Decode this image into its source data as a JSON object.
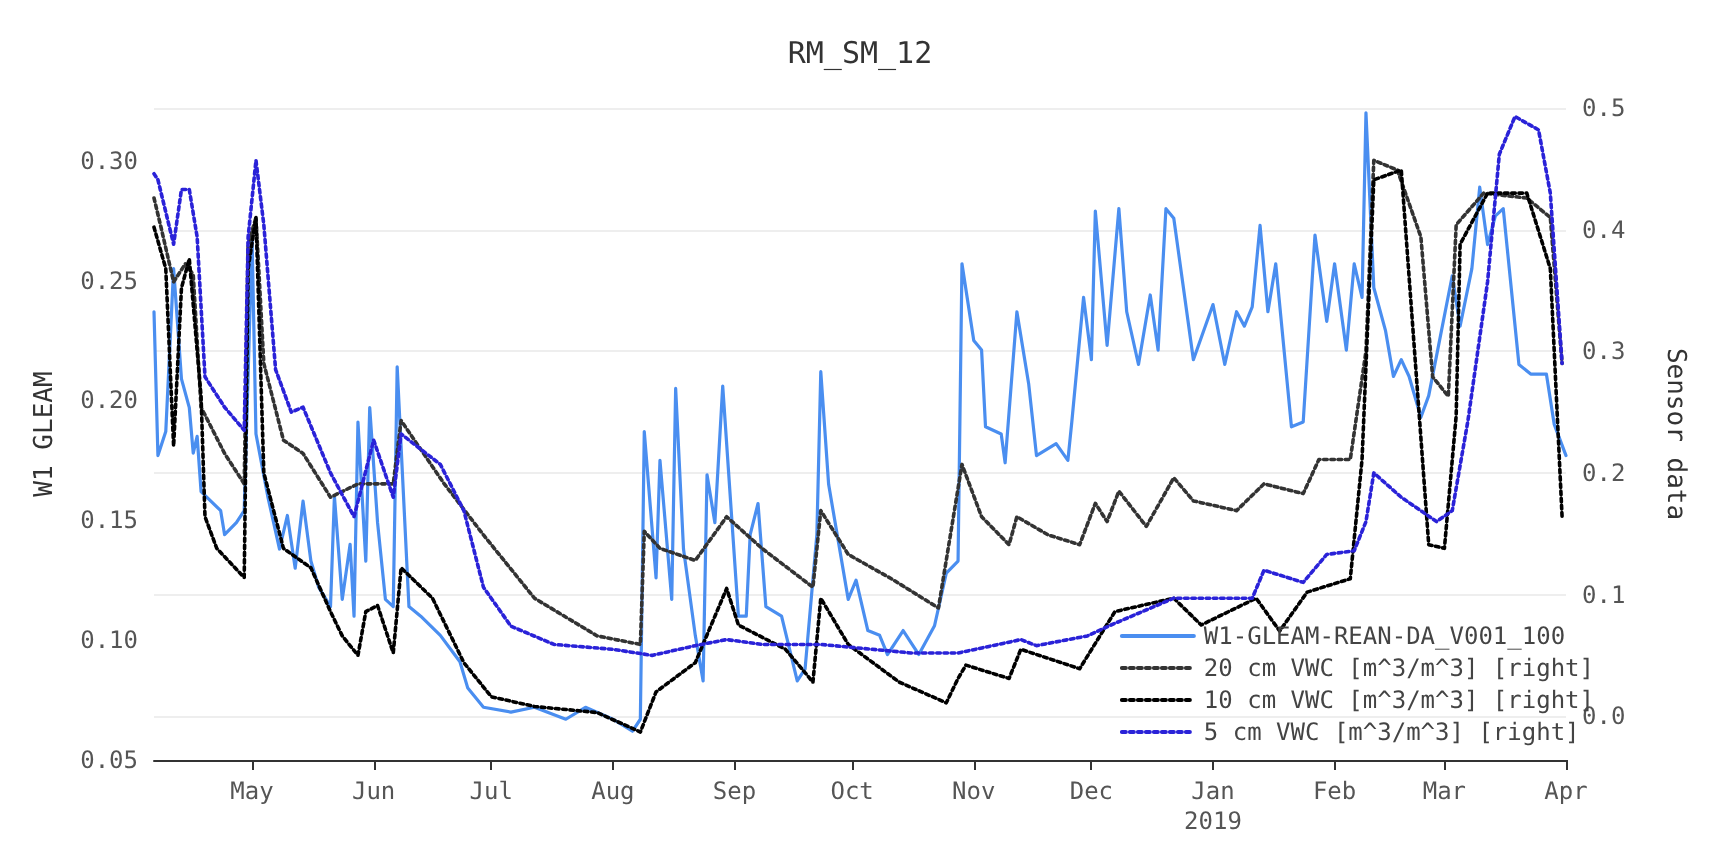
{
  "chart_data": {
    "type": "line",
    "title": "RM_SM_12",
    "ylabel": "W1 GLEAM",
    "y2label": "Sensor data",
    "xlim": [
      "2018-04-06",
      "2019-04-01"
    ],
    "xticks": [
      {
        "value": "2018-05-01",
        "label": "May"
      },
      {
        "value": "2018-06-01",
        "label": "Jun"
      },
      {
        "value": "2018-07-01",
        "label": "Jul"
      },
      {
        "value": "2018-08-01",
        "label": "Aug"
      },
      {
        "value": "2018-09-01",
        "label": "Sep"
      },
      {
        "value": "2018-10-01",
        "label": "Oct"
      },
      {
        "value": "2018-11-01",
        "label": "Nov"
      },
      {
        "value": "2018-12-01",
        "label": "Dec"
      },
      {
        "value": "2019-01-01",
        "label": "Jan\n2019"
      },
      {
        "value": "2019-02-01",
        "label": "Feb"
      },
      {
        "value": "2019-03-01",
        "label": "Mar"
      },
      {
        "value": "2019-04-01",
        "label": "Apr"
      }
    ],
    "ylim": [
      0.05,
      0.322
    ],
    "yticks": [
      {
        "value": 0.05,
        "label": "0.05"
      },
      {
        "value": 0.1,
        "label": "0.10"
      },
      {
        "value": 0.15,
        "label": "0.15"
      },
      {
        "value": 0.2,
        "label": "0.20"
      },
      {
        "value": 0.25,
        "label": "0.25"
      },
      {
        "value": 0.3,
        "label": "0.30"
      }
    ],
    "y2lim": [
      -0.036,
      0.5
    ],
    "y2ticks": [
      {
        "value": 0,
        "label": "0.0"
      },
      0.1,
      0.2,
      0.3,
      0.4,
      0.5
    ],
    "grid": "y2",
    "legend": "bottom right",
    "marker": "none",
    "series": [
      {
        "name": "W1-GLEAM-REAN-DA_V001_100",
        "color": "#4a8ef0",
        "line_style": "solid",
        "x": [
          "2018-04-06",
          "2018-04-07",
          "2018-04-09",
          "2018-04-11",
          "2018-04-13",
          "2018-04-15",
          "2018-04-16",
          "2018-04-17",
          "2018-04-18",
          "2018-04-23",
          "2018-04-24",
          "2018-04-27",
          "2018-04-29",
          "2018-05-01",
          "2018-05-02",
          "2018-05-05",
          "2018-05-08",
          "2018-05-10",
          "2018-05-12",
          "2018-05-14",
          "2018-05-16",
          "2018-05-18",
          "2018-05-21",
          "2018-05-22",
          "2018-05-24",
          "2018-05-26",
          "2018-05-27",
          "2018-05-28",
          "2018-05-30",
          "2018-05-31",
          "2018-06-02",
          "2018-06-04",
          "2018-06-06",
          "2018-06-07",
          "2018-06-10",
          "2018-06-13",
          "2018-06-18",
          "2018-06-23",
          "2018-06-25",
          "2018-06-29",
          "2018-07-06",
          "2018-07-12",
          "2018-07-20",
          "2018-07-25",
          "2018-08-01",
          "2018-08-06",
          "2018-08-08",
          "2018-08-09",
          "2018-08-12",
          "2018-08-13",
          "2018-08-16",
          "2018-08-17",
          "2018-08-19",
          "2018-08-22",
          "2018-08-24",
          "2018-08-25",
          "2018-08-27",
          "2018-08-29",
          "2018-09-02",
          "2018-09-04",
          "2018-09-05",
          "2018-09-07",
          "2018-09-09",
          "2018-09-13",
          "2018-09-17",
          "2018-09-19",
          "2018-09-22",
          "2018-09-23",
          "2018-09-25",
          "2018-09-30",
          "2018-10-02",
          "2018-10-05",
          "2018-10-08",
          "2018-10-10",
          "2018-10-14",
          "2018-10-18",
          "2018-10-22",
          "2018-10-25",
          "2018-10-28",
          "2018-10-29",
          "2018-11-01",
          "2018-11-03",
          "2018-11-04",
          "2018-11-08",
          "2018-11-09",
          "2018-11-12",
          "2018-11-15",
          "2018-11-17",
          "2018-11-22",
          "2018-11-25",
          "2018-11-26",
          "2018-11-29",
          "2018-12-01",
          "2018-12-02",
          "2018-12-05",
          "2018-12-08",
          "2018-12-10",
          "2018-12-13",
          "2018-12-16",
          "2018-12-18",
          "2018-12-20",
          "2018-12-22",
          "2018-12-27",
          "2019-01-01",
          "2019-01-04",
          "2019-01-07",
          "2019-01-09",
          "2019-01-11",
          "2019-01-13",
          "2019-01-15",
          "2019-01-17",
          "2019-01-21",
          "2019-01-24",
          "2019-01-27",
          "2019-01-30",
          "2019-02-01",
          "2019-02-04",
          "2019-02-06",
          "2019-02-08",
          "2019-02-09",
          "2019-02-11",
          "2019-02-14",
          "2019-02-16",
          "2019-02-18",
          "2019-02-20",
          "2019-02-23",
          "2019-02-25",
          "2019-03-03",
          "2019-03-05",
          "2019-03-08",
          "2019-03-10",
          "2019-03-12",
          "2019-03-14",
          "2019-03-16",
          "2019-03-20",
          "2019-03-23",
          "2019-03-27",
          "2019-03-29",
          "2019-04-01"
        ],
        "values": [
          0.237,
          0.177,
          0.187,
          0.255,
          0.209,
          0.197,
          0.178,
          0.185,
          0.162,
          0.154,
          0.144,
          0.149,
          0.154,
          0.268,
          0.186,
          0.16,
          0.138,
          0.152,
          0.13,
          0.158,
          0.133,
          0.122,
          0.114,
          0.16,
          0.117,
          0.14,
          0.11,
          0.191,
          0.133,
          0.197,
          0.149,
          0.117,
          0.114,
          0.214,
          0.114,
          0.11,
          0.102,
          0.091,
          0.08,
          0.072,
          0.07,
          0.072,
          0.067,
          0.072,
          0.067,
          0.062,
          0.067,
          0.187,
          0.126,
          0.175,
          0.117,
          0.205,
          0.138,
          0.102,
          0.083,
          0.169,
          0.149,
          0.206,
          0.11,
          0.11,
          0.144,
          0.157,
          0.114,
          0.11,
          0.083,
          0.088,
          0.144,
          0.212,
          0.165,
          0.117,
          0.125,
          0.104,
          0.102,
          0.094,
          0.104,
          0.094,
          0.106,
          0.128,
          0.133,
          0.257,
          0.225,
          0.221,
          0.189,
          0.186,
          0.174,
          0.237,
          0.207,
          0.177,
          0.182,
          0.175,
          0.191,
          0.243,
          0.217,
          0.279,
          0.223,
          0.28,
          0.237,
          0.215,
          0.244,
          0.221,
          0.28,
          0.276,
          0.217,
          0.24,
          0.215,
          0.237,
          0.231,
          0.239,
          0.273,
          0.237,
          0.257,
          0.189,
          0.191,
          0.269,
          0.233,
          0.257,
          0.221,
          0.257,
          0.243,
          0.32,
          0.247,
          0.229,
          0.21,
          0.217,
          0.21,
          0.193,
          0.202,
          0.252,
          0.231,
          0.255,
          0.289,
          0.265,
          0.277,
          0.28,
          0.215,
          0.211,
          0.211,
          0.19,
          0.177
        ]
      },
      {
        "name": "20 cm VWC [m^3/m^3] [right]",
        "color": "#333333",
        "line_style": "dotted",
        "axis": "y2",
        "x": [
          "2018-04-06",
          "2018-04-08",
          "2018-04-11",
          "2018-04-14",
          "2018-04-16",
          "2018-04-18",
          "2018-04-24",
          "2018-04-29",
          "2018-04-30",
          "2018-05-02",
          "2018-05-04",
          "2018-05-09",
          "2018-05-14",
          "2018-05-21",
          "2018-05-28",
          "2018-06-06",
          "2018-06-08",
          "2018-06-19",
          "2018-06-29",
          "2018-07-12",
          "2018-07-28",
          "2018-08-08",
          "2018-08-09",
          "2018-08-13",
          "2018-08-22",
          "2018-08-30",
          "2018-09-08",
          "2018-09-21",
          "2018-09-23",
          "2018-09-30",
          "2018-10-11",
          "2018-10-23",
          "2018-10-29",
          "2018-11-03",
          "2018-11-10",
          "2018-11-12",
          "2018-11-20",
          "2018-11-28",
          "2018-12-02",
          "2018-12-05",
          "2018-12-08",
          "2018-12-15",
          "2018-12-22",
          "2018-12-27",
          "2019-01-07",
          "2019-01-14",
          "2019-01-24",
          "2019-01-28",
          "2019-02-05",
          "2019-02-09",
          "2019-02-11",
          "2019-02-17",
          "2019-02-23",
          "2019-02-26",
          "2019-03-02",
          "2019-03-04",
          "2019-03-11",
          "2019-03-22",
          "2019-03-28",
          "2019-03-31"
        ],
        "values": [
          0.426,
          0.399,
          0.357,
          0.372,
          0.363,
          0.254,
          0.216,
          0.191,
          0.388,
          0.41,
          0.29,
          0.227,
          0.216,
          0.18,
          0.191,
          0.191,
          0.243,
          0.191,
          0.149,
          0.097,
          0.066,
          0.059,
          0.152,
          0.138,
          0.128,
          0.164,
          0.138,
          0.106,
          0.169,
          0.133,
          0.113,
          0.089,
          0.207,
          0.164,
          0.141,
          0.164,
          0.149,
          0.141,
          0.175,
          0.16,
          0.185,
          0.156,
          0.196,
          0.177,
          0.169,
          0.191,
          0.183,
          0.211,
          0.211,
          0.3,
          0.457,
          0.449,
          0.394,
          0.279,
          0.263,
          0.404,
          0.43,
          0.426,
          0.41,
          0.29
        ]
      },
      {
        "name": "10 cm VWC [m^3/m^3] [right]",
        "color": "#000000",
        "line_style": "dotted",
        "axis": "y2",
        "x": [
          "2018-04-06",
          "2018-04-09",
          "2018-04-11",
          "2018-04-13",
          "2018-04-15",
          "2018-04-18",
          "2018-04-19",
          "2018-04-22",
          "2018-04-29",
          "2018-04-30",
          "2018-05-02",
          "2018-05-04",
          "2018-05-09",
          "2018-05-16",
          "2018-05-21",
          "2018-05-24",
          "2018-05-28",
          "2018-05-30",
          "2018-06-02",
          "2018-06-06",
          "2018-06-08",
          "2018-06-16",
          "2018-06-24",
          "2018-07-01",
          "2018-07-12",
          "2018-07-28",
          "2018-08-08",
          "2018-08-12",
          "2018-08-22",
          "2018-08-30",
          "2018-09-02",
          "2018-09-14",
          "2018-09-21",
          "2018-09-23",
          "2018-09-30",
          "2018-10-13",
          "2018-10-25",
          "2018-10-28",
          "2018-10-30",
          "2018-11-10",
          "2018-11-13",
          "2018-11-28",
          "2018-12-07",
          "2018-12-22",
          "2018-12-29",
          "2019-01-12",
          "2019-01-18",
          "2019-01-25",
          "2019-02-05",
          "2019-02-08",
          "2019-02-11",
          "2019-02-18",
          "2019-02-25",
          "2019-03-01",
          "2019-03-04",
          "2019-03-05",
          "2019-03-12",
          "2019-03-22",
          "2019-03-28",
          "2019-03-31"
        ],
        "values": [
          0.402,
          0.368,
          0.222,
          0.352,
          0.376,
          0.263,
          0.164,
          0.138,
          0.114,
          0.368,
          0.41,
          0.2,
          0.138,
          0.122,
          0.086,
          0.066,
          0.05,
          0.086,
          0.091,
          0.052,
          0.122,
          0.097,
          0.044,
          0.016,
          0.008,
          0.003,
          -0.013,
          0.02,
          0.044,
          0.105,
          0.075,
          0.055,
          0.028,
          0.097,
          0.059,
          0.028,
          0.011,
          0.031,
          0.042,
          0.031,
          0.055,
          0.039,
          0.086,
          0.097,
          0.075,
          0.097,
          0.07,
          0.102,
          0.113,
          0.211,
          0.441,
          0.449,
          0.141,
          0.138,
          0.247,
          0.388,
          0.43,
          0.43,
          0.368,
          0.164
        ]
      },
      {
        "name": "5 cm VWC [m^3/m^3] [right]",
        "color": "#2a22d8",
        "line_style": "dotted",
        "axis": "y2",
        "x": [
          "2018-04-06",
          "2018-04-07",
          "2018-04-11",
          "2018-04-13",
          "2018-04-15",
          "2018-04-17",
          "2018-04-19",
          "2018-04-24",
          "2018-04-29",
          "2018-04-30",
          "2018-05-02",
          "2018-05-04",
          "2018-05-07",
          "2018-05-11",
          "2018-05-14",
          "2018-05-21",
          "2018-05-27",
          "2018-06-01",
          "2018-06-06",
          "2018-06-08",
          "2018-06-18",
          "2018-06-24",
          "2018-06-29",
          "2018-07-06",
          "2018-07-17",
          "2018-08-01",
          "2018-08-11",
          "2018-08-22",
          "2018-08-30",
          "2018-09-08",
          "2018-09-23",
          "2018-10-16",
          "2018-10-28",
          "2018-11-13",
          "2018-11-17",
          "2018-11-30",
          "2018-12-06",
          "2018-12-22",
          "2019-01-11",
          "2019-01-14",
          "2019-01-24",
          "2019-01-30",
          "2019-02-06",
          "2019-02-09",
          "2019-02-11",
          "2019-02-18",
          "2019-02-27",
          "2019-03-03",
          "2019-03-07",
          "2019-03-12",
          "2019-03-15",
          "2019-03-19",
          "2019-03-25",
          "2019-03-28",
          "2019-03-31"
        ],
        "values": [
          0.446,
          0.441,
          0.388,
          0.433,
          0.433,
          0.394,
          0.279,
          0.254,
          0.235,
          0.394,
          0.457,
          0.404,
          0.285,
          0.25,
          0.254,
          0.2,
          0.164,
          0.227,
          0.18,
          0.232,
          0.207,
          0.169,
          0.106,
          0.074,
          0.059,
          0.055,
          0.05,
          0.058,
          0.063,
          0.059,
          0.059,
          0.052,
          0.052,
          0.063,
          0.058,
          0.066,
          0.075,
          0.097,
          0.097,
          0.12,
          0.11,
          0.133,
          0.136,
          0.16,
          0.2,
          0.18,
          0.16,
          0.169,
          0.243,
          0.357,
          0.462,
          0.493,
          0.482,
          0.43,
          0.29
        ]
      }
    ]
  }
}
